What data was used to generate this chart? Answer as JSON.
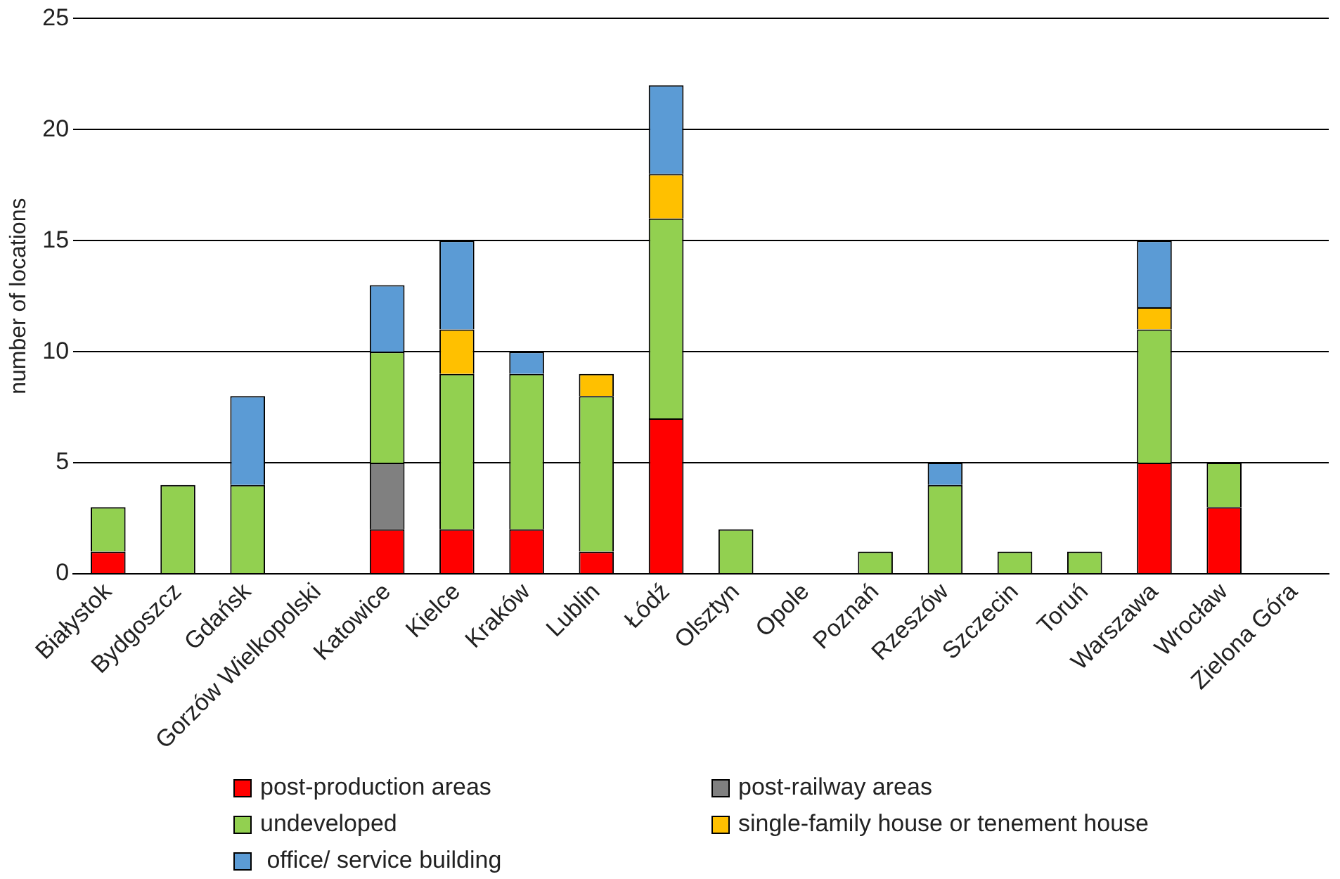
{
  "chart_data": {
    "type": "bar",
    "stacked": true,
    "ylabel": "number of locations",
    "categories": [
      "Białystok",
      "Bydgoszcz",
      "Gdańsk",
      "Gorzów Wielkopolski",
      "Katowice",
      "Kielce",
      "Kraków",
      "Lublin",
      "Łódź",
      "Olsztyn",
      "Opole",
      "Poznań",
      "Rzeszów",
      "Szczecin",
      "Toruń",
      "Warszawa",
      "Wrocław",
      "Zielona Góra"
    ],
    "series": [
      {
        "name": "post-production areas",
        "color": "#ff0000",
        "values": [
          1,
          0,
          0,
          0,
          2,
          2,
          2,
          1,
          7,
          0,
          0,
          0,
          0,
          0,
          0,
          5,
          3,
          0
        ]
      },
      {
        "name": "post-railway areas",
        "color": "#808080",
        "values": [
          0,
          0,
          0,
          0,
          3,
          0,
          0,
          0,
          0,
          0,
          0,
          0,
          0,
          0,
          0,
          0,
          0,
          0
        ]
      },
      {
        "name": "undeveloped",
        "color": "#92d050",
        "values": [
          2,
          4,
          4,
          0,
          5,
          7,
          7,
          7,
          9,
          2,
          0,
          1,
          4,
          1,
          1,
          6,
          2,
          0
        ]
      },
      {
        "name": "single-family house or tenement house",
        "color": "#ffc000",
        "values": [
          0,
          0,
          0,
          0,
          0,
          2,
          0,
          1,
          2,
          0,
          0,
          0,
          0,
          0,
          0,
          1,
          0,
          0
        ]
      },
      {
        "name": " office/ service building",
        "color": "#5b9bd5",
        "values": [
          0,
          0,
          4,
          0,
          3,
          4,
          1,
          0,
          4,
          0,
          0,
          0,
          1,
          0,
          0,
          3,
          0,
          0
        ]
      }
    ],
    "ylim": [
      0,
      25
    ],
    "yticks": [
      0,
      5,
      10,
      15,
      20,
      25
    ],
    "grid": "y",
    "legend": "bottom"
  }
}
